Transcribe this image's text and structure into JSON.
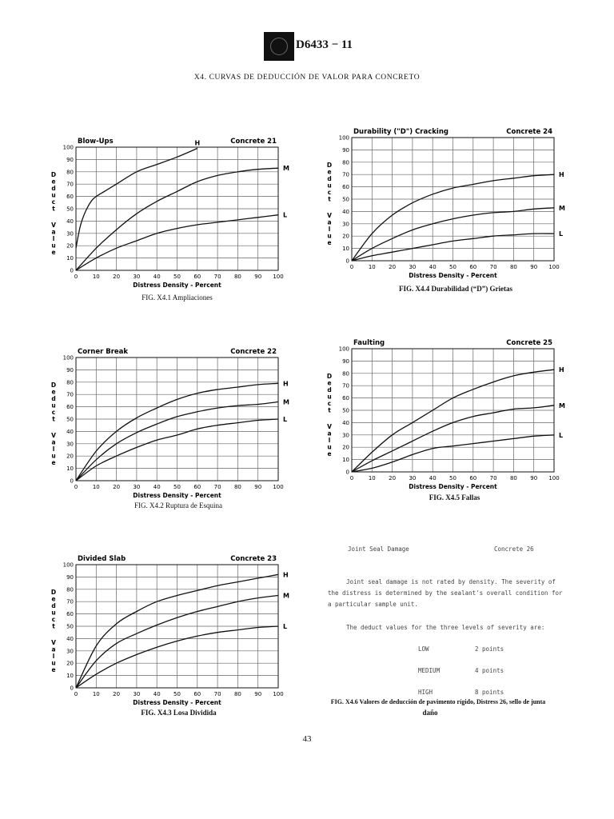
{
  "header": {
    "doc_number": "D6433 − 11",
    "section_title": "X4. CURVAS DE DEDUCCIÓN DE VALOR PARA CONCRETO"
  },
  "page_number": "43",
  "chart_data": [
    {
      "type": "line",
      "title": "Blow-Ups",
      "subtitle": "Concrete 21",
      "ylabel": "Deduct Value",
      "xlabel": "Distress Density - Percent",
      "xlim": [
        0,
        100
      ],
      "ylim": [
        0,
        100
      ],
      "xticks": [
        0,
        10,
        20,
        30,
        40,
        50,
        60,
        70,
        80,
        90,
        100
      ],
      "yticks": [
        0,
        10,
        20,
        30,
        40,
        50,
        60,
        70,
        80,
        90,
        100
      ],
      "grid": true,
      "caption": "FIG. X4.1 Ampliaciones",
      "series": [
        {
          "name": "H",
          "x": [
            0,
            2,
            4,
            6,
            8,
            10,
            15,
            20,
            30,
            40,
            50,
            60
          ],
          "y": [
            18,
            35,
            45,
            52,
            57,
            60,
            65,
            70,
            80,
            86,
            92,
            99
          ]
        },
        {
          "name": "M",
          "x": [
            0,
            10,
            20,
            30,
            40,
            50,
            60,
            70,
            80,
            90,
            100
          ],
          "y": [
            0,
            18,
            33,
            46,
            56,
            64,
            72,
            77,
            80,
            82,
            83
          ]
        },
        {
          "name": "L",
          "x": [
            0,
            10,
            20,
            30,
            40,
            50,
            60,
            70,
            80,
            90,
            100
          ],
          "y": [
            0,
            10,
            18,
            24,
            30,
            34,
            37,
            39,
            41,
            43,
            45
          ]
        }
      ]
    },
    {
      "type": "line",
      "title": "Durability (\"D\") Cracking",
      "subtitle": "Concrete 24",
      "ylabel": "Deduct Value",
      "xlabel": "Distress Density - Percent",
      "xlim": [
        0,
        100
      ],
      "ylim": [
        0,
        100
      ],
      "xticks": [
        0,
        10,
        20,
        30,
        40,
        50,
        60,
        70,
        80,
        90,
        100
      ],
      "yticks": [
        0,
        10,
        20,
        30,
        40,
        50,
        60,
        70,
        80,
        90,
        100
      ],
      "grid": true,
      "caption": "FIG. X4.4 Durabilidad (“D”) Grietas",
      "series": [
        {
          "name": "H",
          "x": [
            0,
            10,
            20,
            30,
            40,
            50,
            60,
            70,
            80,
            90,
            100
          ],
          "y": [
            0,
            22,
            37,
            47,
            54,
            59,
            62,
            65,
            67,
            69,
            70
          ]
        },
        {
          "name": "M",
          "x": [
            0,
            10,
            20,
            30,
            40,
            50,
            60,
            70,
            80,
            90,
            100
          ],
          "y": [
            0,
            10,
            18,
            25,
            30,
            34,
            37,
            39,
            40,
            42,
            43
          ]
        },
        {
          "name": "L",
          "x": [
            0,
            10,
            20,
            30,
            40,
            50,
            60,
            70,
            80,
            90,
            100
          ],
          "y": [
            0,
            4,
            7,
            10,
            13,
            16,
            18,
            20,
            21,
            22,
            22
          ]
        }
      ]
    },
    {
      "type": "line",
      "title": "Corner Break",
      "subtitle": "Concrete 22",
      "ylabel": "Deduct Value",
      "xlabel": "Distress Density - Percent",
      "xlim": [
        0,
        100
      ],
      "ylim": [
        0,
        100
      ],
      "xticks": [
        0,
        10,
        20,
        30,
        40,
        50,
        60,
        70,
        80,
        90,
        100
      ],
      "yticks": [
        0,
        10,
        20,
        30,
        40,
        50,
        60,
        70,
        80,
        90,
        100
      ],
      "grid": true,
      "caption": "FIG. X4.2 Ruptura de Esquina",
      "series": [
        {
          "name": "H",
          "x": [
            0,
            10,
            20,
            30,
            40,
            50,
            60,
            70,
            80,
            90,
            100
          ],
          "y": [
            0,
            24,
            40,
            51,
            59,
            66,
            71,
            74,
            76,
            78,
            79
          ]
        },
        {
          "name": "M",
          "x": [
            0,
            10,
            20,
            30,
            40,
            50,
            60,
            70,
            80,
            90,
            100
          ],
          "y": [
            0,
            17,
            30,
            39,
            46,
            52,
            56,
            59,
            61,
            62,
            64
          ]
        },
        {
          "name": "L",
          "x": [
            0,
            10,
            20,
            30,
            40,
            50,
            60,
            70,
            80,
            90,
            100
          ],
          "y": [
            0,
            12,
            20,
            27,
            33,
            37,
            42,
            45,
            47,
            49,
            50
          ]
        }
      ]
    },
    {
      "type": "line",
      "title": "Faulting",
      "subtitle": "Concrete 25",
      "ylabel": "Deduct Value",
      "xlabel": "Distress Density - Percent",
      "xlim": [
        0,
        100
      ],
      "ylim": [
        0,
        100
      ],
      "xticks": [
        0,
        10,
        20,
        30,
        40,
        50,
        60,
        70,
        80,
        90,
        100
      ],
      "yticks": [
        0,
        10,
        20,
        30,
        40,
        50,
        60,
        70,
        80,
        90,
        100
      ],
      "grid": true,
      "caption": "FIG. X4.5 Fallas",
      "series": [
        {
          "name": "H",
          "x": [
            0,
            10,
            20,
            30,
            40,
            50,
            60,
            70,
            80,
            90,
            100
          ],
          "y": [
            0,
            16,
            30,
            40,
            50,
            60,
            67,
            73,
            78,
            81,
            83
          ]
        },
        {
          "name": "M",
          "x": [
            0,
            10,
            20,
            30,
            40,
            50,
            60,
            70,
            80,
            90,
            100
          ],
          "y": [
            0,
            9,
            17,
            25,
            33,
            40,
            45,
            48,
            51,
            52,
            54
          ]
        },
        {
          "name": "L",
          "x": [
            0,
            10,
            20,
            30,
            40,
            50,
            60,
            70,
            80,
            90,
            100
          ],
          "y": [
            0,
            3,
            8,
            14,
            19,
            21,
            23,
            25,
            27,
            29,
            30
          ]
        }
      ]
    },
    {
      "type": "line",
      "title": "Divided Slab",
      "subtitle": "Concrete 23",
      "ylabel": "Deduct Value",
      "xlabel": "Distress Density - Percent",
      "xlim": [
        0,
        100
      ],
      "ylim": [
        0,
        100
      ],
      "xticks": [
        0,
        10,
        20,
        30,
        40,
        50,
        60,
        70,
        80,
        90,
        100
      ],
      "yticks": [
        0,
        10,
        20,
        30,
        40,
        50,
        60,
        70,
        80,
        90,
        100
      ],
      "grid": true,
      "caption": "FIG. X4.3 Losa Dividida",
      "series": [
        {
          "name": "H",
          "x": [
            0,
            10,
            20,
            30,
            40,
            50,
            60,
            70,
            80,
            90,
            100
          ],
          "y": [
            0,
            34,
            52,
            62,
            70,
            75,
            79,
            83,
            86,
            89,
            92
          ]
        },
        {
          "name": "M",
          "x": [
            0,
            10,
            20,
            30,
            40,
            50,
            60,
            70,
            80,
            90,
            100
          ],
          "y": [
            0,
            22,
            36,
            44,
            51,
            57,
            62,
            66,
            70,
            73,
            75
          ]
        },
        {
          "name": "L",
          "x": [
            0,
            10,
            20,
            30,
            40,
            50,
            60,
            70,
            80,
            90,
            100
          ],
          "y": [
            0,
            11,
            20,
            27,
            33,
            38,
            42,
            45,
            47,
            49,
            50
          ]
        }
      ]
    }
  ],
  "joint_seal": {
    "title": "Joint Seal Damage",
    "concrete": "Concrete 26",
    "line1": "Joint seal damage is not rated by density. The severity of",
    "line2": "the distress is determined by the sealant's overall condition for",
    "line3": "a particular sample unit.",
    "line4": "The deduct values for the three levels of severity are:",
    "levels": [
      {
        "label": "LOW",
        "value": "2 points"
      },
      {
        "label": "MEDIUM",
        "value": "4 points"
      },
      {
        "label": "HIGH",
        "value": "8 points"
      }
    ],
    "caption_line1": "FIG. X4.6 Valores de deducción de pavimento rígido, Distress 26, sello de junta",
    "caption_line2": "daño"
  }
}
